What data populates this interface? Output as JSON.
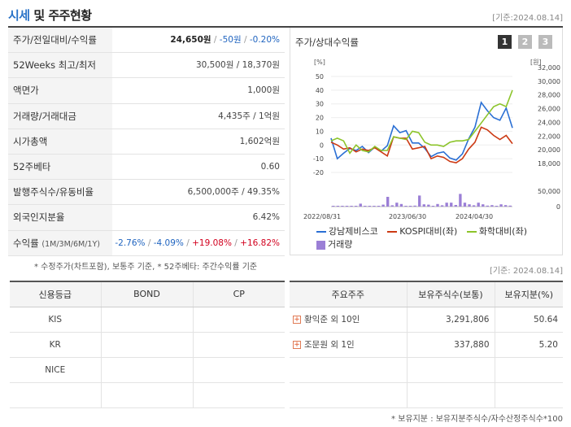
{
  "header": {
    "title_highlight": "시세",
    "title_rest": " 및 주주현황",
    "base_date": "[기준:2024.08.14]"
  },
  "info": {
    "rows": [
      {
        "label": "주가/전일대비/수익률",
        "price": "24,650원",
        "change": "-50원",
        "rate": "-0.20%"
      },
      {
        "label": "52Weeks 최고/최저",
        "value": "30,500원 / 18,370원"
      },
      {
        "label": "액면가",
        "value": "1,000원"
      },
      {
        "label": "거래량/거래대금",
        "value": "4,435주 / 1억원"
      },
      {
        "label": "시가총액",
        "value": "1,602억원"
      },
      {
        "label": "52주베타",
        "value": "0.60"
      },
      {
        "label": "발행주식수/유동비율",
        "value": "6,500,000주 / 49.35%"
      },
      {
        "label": "외국인지분율",
        "value": "6.42%"
      },
      {
        "label": "수익률",
        "label_sub": "(1M/3M/6M/1Y)",
        "r1": "-2.76%",
        "r2": "-4.09%",
        "r3": "+19.08%",
        "r4": "+16.82%"
      }
    ]
  },
  "chart": {
    "title": "주가/상대수익률",
    "pages": [
      "1",
      "2",
      "3"
    ],
    "left_unit": "[%]",
    "right_unit": "[원]",
    "legend": {
      "s1": "강남제비스코",
      "s2": "KOSPI대비(좌)",
      "s3": "화학대비(좌)",
      "s4": "거래량"
    },
    "colors": {
      "s1": "#2a6fd4",
      "s2": "#cc3a14",
      "s3": "#8cc42a",
      "s4": "#9b7fd6"
    }
  },
  "chart_data": {
    "type": "line",
    "x_ticks": [
      "2022/08/31",
      "2023/06/30",
      "2024/04/30"
    ],
    "left_ticks": [
      "50",
      "40",
      "30",
      "20",
      "10",
      "0",
      "-10",
      "-20"
    ],
    "right_ticks": [
      "32,000",
      "30,000",
      "28,000",
      "26,000",
      "24,000",
      "22,000",
      "20,000",
      "18,000"
    ],
    "volume_ticks": [
      "50,000",
      "0"
    ],
    "ylim_left": [
      -20,
      50
    ],
    "ylim_right": [
      18000,
      32000
    ],
    "series": [
      {
        "name": "강남제비스코",
        "axis": "right",
        "values": [
          23000,
          20000,
          20800,
          21500,
          21200,
          21800,
          20900,
          21700,
          21100,
          21900,
          24800,
          23800,
          24100,
          22300,
          22300,
          21500,
          20300,
          20800,
          21000,
          20100,
          19800,
          20700,
          22900,
          24600,
          28200,
          27000,
          26000,
          25600,
          27400,
          24500
        ]
      },
      {
        "name": "KOSPI대비(좌)",
        "axis": "left",
        "values": [
          2,
          0,
          -3,
          -2,
          -5,
          -3,
          -4,
          -2,
          -5,
          -8,
          6,
          5,
          5,
          -3,
          -2,
          -1,
          -10,
          -8,
          -9,
          -12,
          -13,
          -10,
          -3,
          2,
          13,
          11,
          7,
          4,
          7,
          1
        ]
      },
      {
        "name": "화학대비(좌)",
        "axis": "left",
        "values": [
          3,
          5,
          3,
          -6,
          0,
          -4,
          -5,
          -1,
          -4,
          -4,
          6,
          5,
          4,
          10,
          9,
          2,
          0,
          0,
          -1,
          2,
          3,
          3,
          4,
          10,
          16,
          22,
          28,
          30,
          28,
          40
        ]
      }
    ],
    "volume": [
      1500,
      800,
      0,
      1200,
      600,
      1000,
      9000,
      1500,
      800,
      500,
      2500,
      6000,
      30000,
      4000,
      12000,
      8000,
      2500,
      2000,
      3000,
      34000,
      7000,
      6000,
      2000,
      8000,
      4000,
      12000,
      12000,
      5000,
      39000,
      12000,
      7000,
      4000,
      12000,
      7000,
      3000,
      4500,
      2500,
      7000,
      4500,
      3000
    ]
  },
  "footnote1": "* 수정주가(차트포함), 보통주 기준, * 52주베타: 주간수익률 기준",
  "base_date2": "[기준: 2024.08.14]",
  "credit": {
    "headers": [
      "신용등급",
      "BOND",
      "CP"
    ],
    "rows": [
      {
        "agency": "KIS",
        "bond": "",
        "cp": ""
      },
      {
        "agency": "KR",
        "bond": "",
        "cp": ""
      },
      {
        "agency": "NICE",
        "bond": "",
        "cp": ""
      },
      {
        "agency": "",
        "bond": "",
        "cp": ""
      }
    ]
  },
  "holders": {
    "headers": [
      "주요주주",
      "보유주식수(보통)",
      "보유지분(%)"
    ],
    "rows": [
      {
        "name": "황익준 외 10인",
        "shares": "3,291,806",
        "pct": "50.64"
      },
      {
        "name": "조문원 외 1인",
        "shares": "337,880",
        "pct": "5.20"
      },
      {
        "name": "",
        "shares": "",
        "pct": ""
      },
      {
        "name": "",
        "shares": "",
        "pct": ""
      }
    ]
  },
  "footnote2": "* 보유지분 : 보유지분주식수/자수산정주식수*100"
}
